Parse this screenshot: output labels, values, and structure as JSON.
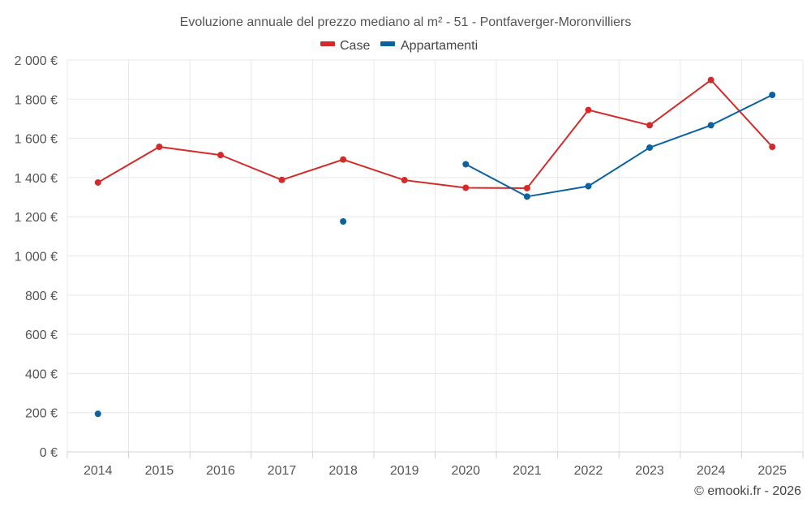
{
  "chart_data": {
    "type": "line",
    "title": "Evoluzione annuale del prezzo mediano al m² - 51 - Pontfaverger-Moronvilliers",
    "xlabel": "",
    "ylabel": "",
    "categories": [
      "2014",
      "2015",
      "2016",
      "2017",
      "2018",
      "2019",
      "2020",
      "2021",
      "2022",
      "2023",
      "2024",
      "2025"
    ],
    "ylim": [
      0,
      2000
    ],
    "yticks": [
      0,
      200,
      400,
      600,
      800,
      1000,
      1200,
      1400,
      1600,
      1800,
      2000
    ],
    "ytick_labels": [
      "0 €",
      "200 €",
      "400 €",
      "600 €",
      "800 €",
      "1 000 €",
      "1 200 €",
      "1 400 €",
      "1 600 €",
      "1 800 €",
      "2 000 €"
    ],
    "legend_position": "top-center",
    "grid": true,
    "series": [
      {
        "name": "Case",
        "color": "#d42a2a",
        "values": [
          1375,
          1557,
          1515,
          1388,
          1492,
          1387,
          1348,
          1346,
          1745,
          1667,
          1898,
          1557
        ]
      },
      {
        "name": "Appartamenti",
        "color": "#0a62a0",
        "values": [
          194,
          null,
          null,
          null,
          1176,
          null,
          1468,
          1303,
          1356,
          1553,
          1667,
          1822
        ]
      }
    ]
  },
  "credit": "© emooki.fr - 2026"
}
